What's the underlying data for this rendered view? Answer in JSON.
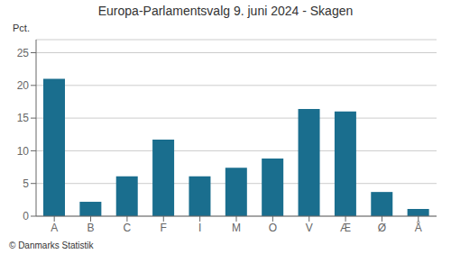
{
  "chart_data": {
    "type": "bar",
    "title": "Europa-Parlamentsvalg 9. juni 2024 - Skagen",
    "ylabel": "Pct.",
    "footnote": "© Danmarks Statistik",
    "categories": [
      "A",
      "B",
      "C",
      "F",
      "I",
      "M",
      "O",
      "V",
      "Æ",
      "Ø",
      "Å"
    ],
    "values": [
      21.0,
      2.2,
      6.1,
      11.7,
      6.1,
      7.4,
      8.8,
      16.4,
      16.0,
      3.7,
      1.1
    ],
    "color": "#1a6e8e",
    "ylim": [
      0,
      27
    ],
    "yticks": [
      0,
      5,
      10,
      15,
      20,
      25
    ],
    "grid": true
  }
}
